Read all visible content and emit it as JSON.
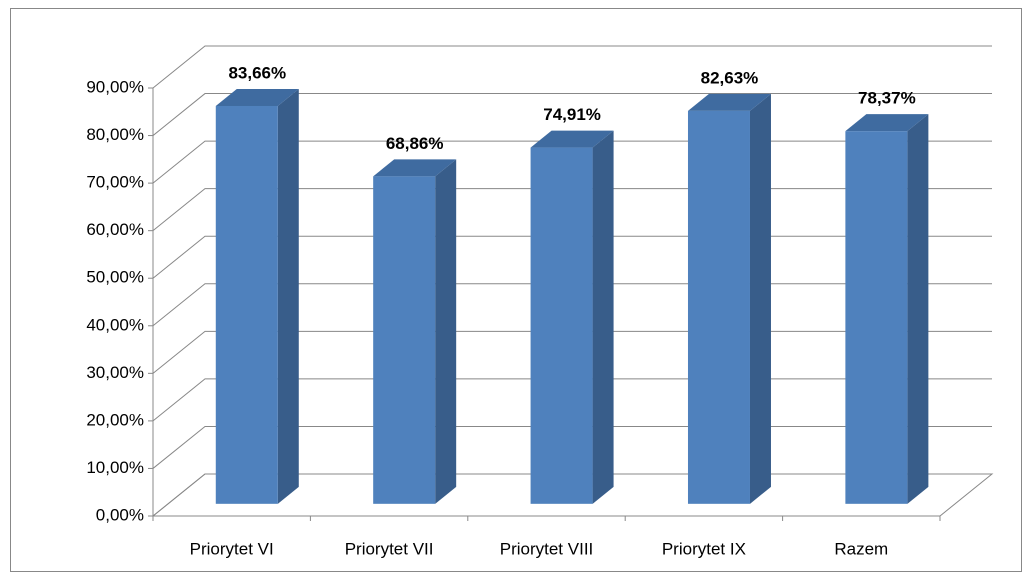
{
  "chart_data": {
    "type": "bar3d",
    "categories": [
      "Priorytet VI",
      "Priorytet VII",
      "Priorytet VIII",
      "Priorytet IX",
      "Razem"
    ],
    "values": [
      83.66,
      68.86,
      74.91,
      82.63,
      78.37
    ],
    "value_labels": [
      "83,66%",
      "68,86%",
      "74,91%",
      "82,63%",
      "78,37%"
    ],
    "color": "#4f81bd",
    "ylim": [
      0,
      90
    ],
    "yticks": [
      {
        "value": 0,
        "label": "0,00%"
      },
      {
        "value": 10,
        "label": "10,00%"
      },
      {
        "value": 20,
        "label": "20,00%"
      },
      {
        "value": 30,
        "label": "30,00%"
      },
      {
        "value": 40,
        "label": "40,00%"
      },
      {
        "value": 50,
        "label": "50,00%"
      },
      {
        "value": 60,
        "label": "60,00%"
      },
      {
        "value": 70,
        "label": "70,00%"
      },
      {
        "value": 80,
        "label": "80,00%"
      },
      {
        "value": 90,
        "label": "90,00%"
      }
    ],
    "grid": true
  }
}
